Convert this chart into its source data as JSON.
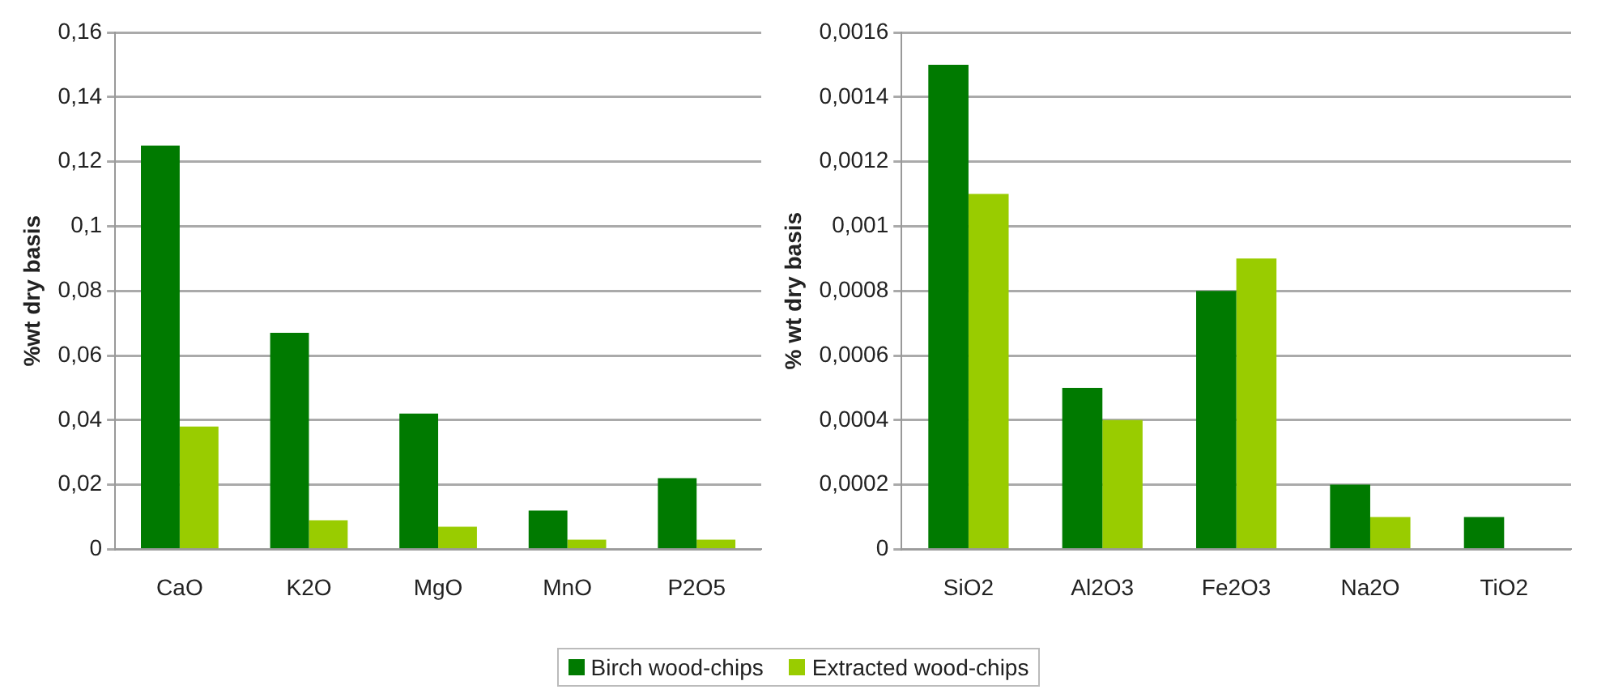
{
  "chart_data": [
    {
      "type": "bar",
      "ylabel": "%wt dry basis",
      "categories": [
        "CaO",
        "K2O",
        "MgO",
        "MnO",
        "P2O5"
      ],
      "series": [
        {
          "name": "Birch wood-chips",
          "color": "#007a00",
          "values": [
            0.125,
            0.067,
            0.042,
            0.012,
            0.022
          ]
        },
        {
          "name": "Extracted wood-chips",
          "color": "#99cc00",
          "values": [
            0.038,
            0.009,
            0.007,
            0.003,
            0.003
          ]
        }
      ],
      "ylim": [
        0,
        0.16
      ],
      "yticks": [
        {
          "value": 0,
          "label": "0"
        },
        {
          "value": 0.02,
          "label": "0,02"
        },
        {
          "value": 0.04,
          "label": "0,04"
        },
        {
          "value": 0.06,
          "label": "0,06"
        },
        {
          "value": 0.08,
          "label": "0,08"
        },
        {
          "value": 0.1,
          "label": "0,1"
        },
        {
          "value": 0.12,
          "label": "0,12"
        },
        {
          "value": 0.14,
          "label": "0,14"
        },
        {
          "value": 0.16,
          "label": "0,16"
        }
      ],
      "grid": "y",
      "legend": "bottom"
    },
    {
      "type": "bar",
      "ylabel": "% wt dry basis",
      "categories": [
        "SiO2",
        "Al2O3",
        "Fe2O3",
        "Na2O",
        "TiO2"
      ],
      "series": [
        {
          "color": "#007a00",
          "values": [
            0.0015,
            0.0005,
            0.0008,
            0.0002,
            0.0001
          ]
        },
        {
          "color": "#99cc00",
          "values": [
            0.0011,
            0.0004,
            0.0009,
            0.0001,
            null
          ]
        }
      ],
      "ylim": [
        0,
        0.0016
      ],
      "yticks": [
        {
          "value": 0,
          "label": "0"
        },
        {
          "value": 0.0002,
          "label": "0,0002"
        },
        {
          "value": 0.0004,
          "label": "0,0004"
        },
        {
          "value": 0.0006,
          "label": "0,0006"
        },
        {
          "value": 0.0008,
          "label": "0,0008"
        },
        {
          "value": 0.001,
          "label": "0,001"
        },
        {
          "value": 0.0012,
          "label": "0,0012"
        },
        {
          "value": 0.0014,
          "label": "0,0014"
        },
        {
          "value": 0.0016,
          "label": "0,0016"
        }
      ],
      "grid": "y"
    }
  ]
}
